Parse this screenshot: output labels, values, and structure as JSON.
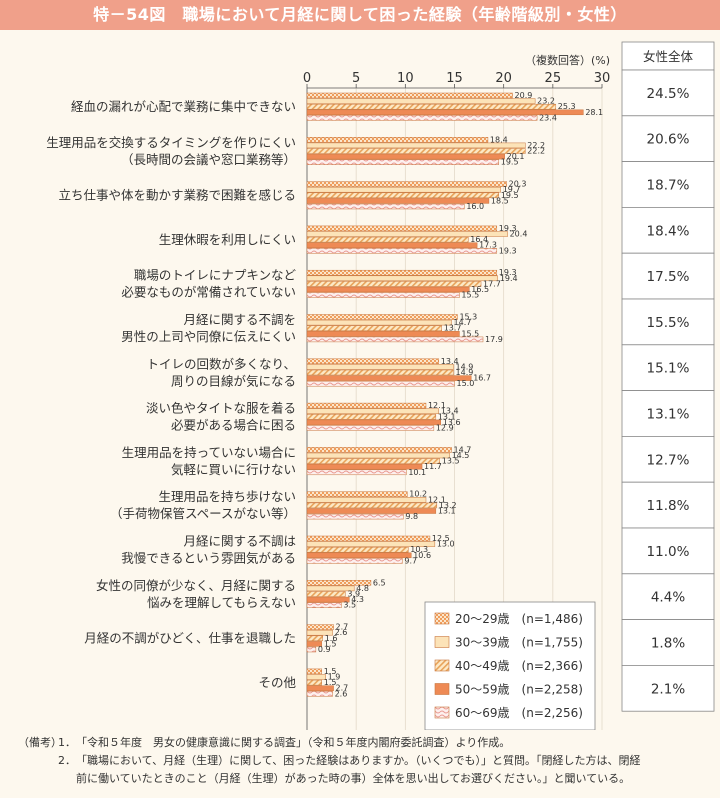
{
  "title": "特－54図　職場において月経に関して困った経験（年齢階級別・女性）",
  "unit_note": "（複数回答）(%)",
  "total_header": "女性全体",
  "notes": {
    "label": "（備考）",
    "items": [
      {
        "num": "1．",
        "text": "「令和５年度　男女の健康意識に関する調査」（令和５年度内閣府委託調査）より作成。"
      },
      {
        "num": "2．",
        "text": "「職場において、月経（生理）に関して、困った経験はありますか。（いくつでも）」と質問。「閉経した方は、閉経"
      }
    ],
    "continuation": "前に働いていたときのこと（月経（生理）があった時の事）全体を思い出してお選びください。」と聞いている。"
  },
  "chart_data": {
    "type": "bar",
    "orientation": "horizontal",
    "xlim": [
      0,
      30
    ],
    "x_ticks": [
      "0",
      "5",
      "10",
      "15",
      "20",
      "25",
      "30"
    ],
    "categories": [
      [
        "経血の漏れが心配で業務に集中できない"
      ],
      [
        "生理用品を交換するタイミングを作りにくい",
        "（長時間の会議や窓口業務等）"
      ],
      [
        "立ち仕事や体を動かす業務で困難を感じる"
      ],
      [
        "生理休暇を利用しにくい"
      ],
      [
        "職場のトイレにナプキンなど",
        "必要なものが常備されていない"
      ],
      [
        "月経に関する不調を",
        "男性の上司や同僚に伝えにくい"
      ],
      [
        "トイレの回数が多くなり、",
        "周りの目線が気になる"
      ],
      [
        "淡い色やタイトな服を着る",
        "必要がある場合に困る"
      ],
      [
        "生理用品を持っていない場合に",
        "気軽に買いに行けない"
      ],
      [
        "生理用品を持ち歩けない",
        "（手荷物保管スペースがない等）"
      ],
      [
        "月経に関する不調は",
        "我慢できるという雰囲気がある"
      ],
      [
        "女性の同僚が少なく、月経に関する",
        "悩みを理解してもらえない"
      ],
      [
        "月経の不調がひどく、仕事を退職した"
      ],
      [
        "その他"
      ]
    ],
    "series": [
      {
        "name": "20～29歳　(n=1,486)",
        "pattern": "checker",
        "color": "#f5c49a",
        "values": [
          20.9,
          18.4,
          20.3,
          19.3,
          19.3,
          15.3,
          13.4,
          12.1,
          14.7,
          10.2,
          12.5,
          6.5,
          2.7,
          1.5
        ]
      },
      {
        "name": "30～39歳　(n=1,755)",
        "pattern": "solid",
        "color": "#fce3b8",
        "values": [
          23.2,
          22.2,
          19.7,
          20.4,
          19.4,
          14.7,
          14.9,
          13.4,
          14.5,
          12.1,
          13.0,
          4.8,
          2.6,
          1.9
        ]
      },
      {
        "name": "40～49歳　(n=2,366)",
        "pattern": "diagonal",
        "color": "#f7c98e",
        "values": [
          25.3,
          22.2,
          19.5,
          16.4,
          17.7,
          13.7,
          14.9,
          13.1,
          13.5,
          13.2,
          10.3,
          3.9,
          1.6,
          1.5
        ]
      },
      {
        "name": "50～59歳　(n=2,258)",
        "pattern": "solid",
        "color": "#ee8a55",
        "values": [
          28.1,
          20.1,
          18.5,
          17.3,
          16.5,
          15.5,
          16.7,
          13.6,
          11.7,
          13.1,
          10.6,
          4.3,
          1.5,
          2.7
        ]
      },
      {
        "name": "60～69歳　(n=2,256)",
        "pattern": "wave",
        "color": "#f6d0cc",
        "values": [
          23.4,
          19.5,
          16.0,
          19.3,
          15.5,
          17.9,
          15.0,
          12.9,
          10.1,
          9.8,
          9.7,
          3.5,
          0.9,
          2.6
        ]
      }
    ],
    "total_values": [
      "24.5%",
      "20.6%",
      "18.7%",
      "18.4%",
      "17.5%",
      "15.5%",
      "15.1%",
      "13.1%",
      "12.7%",
      "11.8%",
      "11.0%",
      "4.4%",
      "1.8%",
      "2.1%"
    ],
    "legend_position": "bottom-right"
  }
}
